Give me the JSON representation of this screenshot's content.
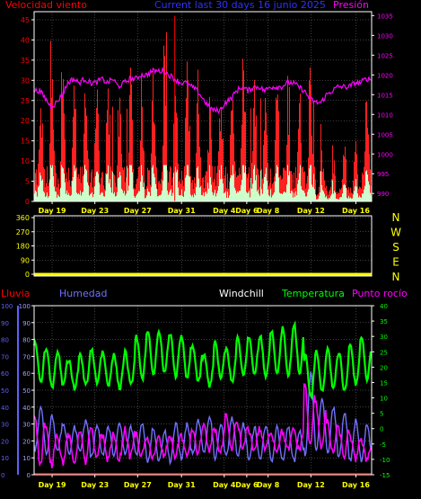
{
  "chart_data": {
    "type": "line",
    "title": "Current last 30 days 16 junio 2025",
    "colors": {
      "background": "#000000",
      "axis": "#ffffff",
      "grid": "#808080",
      "wind": "#ff0000",
      "gust_fill": "#ff2020",
      "avg_fill": "#ccffcc",
      "pressure": "#ff00ff",
      "direction": "#ffff00",
      "rain": "#ff0000",
      "humidity": "#7070ff",
      "windchill": "#ffffff",
      "temperature": "#00ff00",
      "dewpoint": "#ff00ff",
      "day_label": "#ffff00",
      "humidity_axis": "#a0a0ff",
      "pressure_axis": "#ff00ff",
      "rain_axis": "#6060ff",
      "temp_axis": "#00ff00"
    },
    "day_labels": [
      "Day 19",
      "Day 23",
      "Day 27",
      "Day 31",
      "Day 4",
      "Day 6",
      "Day 8",
      "Day 12",
      "Day 16"
    ],
    "day_label_positions": [
      1.6,
      5.4,
      9.2,
      13.1,
      16.9,
      18.9,
      20.8,
      24.6,
      28.6
    ],
    "x_range_days": [
      0,
      30
    ],
    "panels": [
      {
        "id": "wind",
        "left_label": "Velocidad viento",
        "right_label": "Presión",
        "left_axis": {
          "min": 0,
          "max": 47,
          "ticks": [
            0,
            5,
            10,
            15,
            20,
            25,
            30,
            35,
            40,
            45
          ]
        },
        "right_axis": {
          "min": 988,
          "max": 1036,
          "ticks": [
            990,
            995,
            1000,
            1005,
            1010,
            1015,
            1020,
            1025,
            1030,
            1035
          ]
        },
        "pressure_series": [
          [
            0,
            1016
          ],
          [
            0.5,
            1016
          ],
          [
            1,
            1014
          ],
          [
            1.5,
            1012
          ],
          [
            2,
            1013
          ],
          [
            2.5,
            1015
          ],
          [
            3,
            1018
          ],
          [
            3.5,
            1019
          ],
          [
            4,
            1018
          ],
          [
            4.5,
            1019
          ],
          [
            5,
            1018
          ],
          [
            5.5,
            1018
          ],
          [
            6,
            1019
          ],
          [
            6.5,
            1018
          ],
          [
            7,
            1019
          ],
          [
            7.5,
            1017
          ],
          [
            8,
            1018
          ],
          [
            8.5,
            1019
          ],
          [
            9,
            1019
          ],
          [
            9.5,
            1020
          ],
          [
            10,
            1020
          ],
          [
            10.5,
            1021
          ],
          [
            11,
            1021
          ],
          [
            11.5,
            1021
          ],
          [
            12,
            1020
          ],
          [
            12.5,
            1019
          ],
          [
            13,
            1018
          ],
          [
            13.5,
            1018
          ],
          [
            14,
            1017
          ],
          [
            14.5,
            1016
          ],
          [
            15,
            1014
          ],
          [
            15.5,
            1012
          ],
          [
            16,
            1011
          ],
          [
            16.5,
            1011
          ],
          [
            17,
            1013
          ],
          [
            17.5,
            1014
          ],
          [
            18,
            1016
          ],
          [
            18.5,
            1017
          ],
          [
            19,
            1016
          ],
          [
            19.5,
            1017
          ],
          [
            20,
            1017
          ],
          [
            20.5,
            1016
          ],
          [
            21,
            1017
          ],
          [
            21.5,
            1017
          ],
          [
            22,
            1017
          ],
          [
            22.5,
            1018
          ],
          [
            23,
            1018
          ],
          [
            23.5,
            1017
          ],
          [
            24,
            1016
          ],
          [
            24.5,
            1014
          ],
          [
            25,
            1013
          ],
          [
            25.5,
            1013
          ],
          [
            26,
            1015
          ],
          [
            26.5,
            1016
          ],
          [
            27,
            1017
          ],
          [
            27.5,
            1017
          ],
          [
            28,
            1017
          ],
          [
            28.5,
            1018
          ],
          [
            29,
            1018
          ],
          [
            29.5,
            1019
          ],
          [
            30,
            1019
          ]
        ]
      },
      {
        "id": "direction",
        "left_axis": {
          "min": 0,
          "max": 360,
          "ticks": [
            0,
            90,
            180,
            270,
            360
          ]
        },
        "compass_labels": [
          "N",
          "W",
          "S",
          "E",
          "N"
        ],
        "direction_deg": 0
      },
      {
        "id": "climate",
        "labels": {
          "rain": "Lluvia",
          "humidity": "Humedad",
          "windchill": "Windchill",
          "temperature": "Temperatura",
          "dewpoint": "Punto rocío"
        },
        "rain_axis": {
          "min": 0,
          "max": 100,
          "ticks": [
            0,
            10,
            20,
            30,
            40,
            50,
            60,
            70,
            80,
            90,
            100
          ]
        },
        "humidity_axis": {
          "min": 0,
          "max": 100,
          "ticks": [
            0,
            10,
            20,
            30,
            40,
            50,
            60,
            70,
            80,
            90,
            100
          ]
        },
        "temp_axis": {
          "min": -15,
          "max": 40,
          "ticks": [
            -15,
            -10,
            -5,
            0,
            5,
            10,
            15,
            20,
            25,
            30,
            35,
            40
          ]
        },
        "temperature_daily_range": [
          [
            15,
            28
          ],
          [
            13,
            26
          ],
          [
            14,
            25
          ],
          [
            13,
            22
          ],
          [
            14,
            24
          ],
          [
            15,
            26
          ],
          [
            14,
            25
          ],
          [
            13,
            24
          ],
          [
            14,
            25
          ],
          [
            16,
            30
          ],
          [
            17,
            32
          ],
          [
            18,
            32
          ],
          [
            17,
            31
          ],
          [
            16,
            30
          ],
          [
            15,
            27
          ],
          [
            14,
            24
          ],
          [
            16,
            28
          ],
          [
            15,
            26
          ],
          [
            17,
            30
          ],
          [
            18,
            30
          ],
          [
            17,
            30
          ],
          [
            18,
            32
          ],
          [
            17,
            33
          ],
          [
            18,
            34
          ],
          [
            10,
            24
          ],
          [
            12,
            25
          ],
          [
            13,
            26
          ],
          [
            12,
            25
          ],
          [
            14,
            28
          ],
          [
            16,
            30
          ]
        ],
        "humidity_daily_range": [
          [
            15,
            40
          ],
          [
            12,
            35
          ],
          [
            15,
            30
          ],
          [
            12,
            28
          ],
          [
            15,
            32
          ],
          [
            10,
            30
          ],
          [
            12,
            28
          ],
          [
            12,
            30
          ],
          [
            12,
            28
          ],
          [
            12,
            30
          ],
          [
            8,
            28
          ],
          [
            8,
            26
          ],
          [
            8,
            30
          ],
          [
            10,
            30
          ],
          [
            12,
            32
          ],
          [
            12,
            35
          ],
          [
            10,
            30
          ],
          [
            12,
            34
          ],
          [
            10,
            30
          ],
          [
            8,
            28
          ],
          [
            8,
            30
          ],
          [
            8,
            28
          ],
          [
            8,
            28
          ],
          [
            8,
            26
          ],
          [
            12,
            60
          ],
          [
            15,
            45
          ],
          [
            12,
            40
          ],
          [
            10,
            36
          ],
          [
            8,
            32
          ],
          [
            8,
            30
          ]
        ],
        "dewpoint_daily_range": [
          [
            -12,
            5
          ],
          [
            -12,
            0
          ],
          [
            -11,
            -2
          ],
          [
            -11,
            -2
          ],
          [
            -11,
            0
          ],
          [
            -10,
            0
          ],
          [
            -10,
            -2
          ],
          [
            -10,
            -2
          ],
          [
            -9,
            0
          ],
          [
            -9,
            -2
          ],
          [
            -9,
            -4
          ],
          [
            -9,
            -3
          ],
          [
            -9,
            -2
          ],
          [
            -9,
            -2
          ],
          [
            -8,
            0
          ],
          [
            -8,
            2
          ],
          [
            -8,
            0
          ],
          [
            -7,
            4
          ],
          [
            -7,
            2
          ],
          [
            -7,
            0
          ],
          [
            -7,
            0
          ],
          [
            -7,
            -1
          ],
          [
            -7,
            -1
          ],
          [
            -7,
            0
          ],
          [
            -6,
            15
          ],
          [
            -6,
            8
          ],
          [
            -8,
            2
          ],
          [
            -9,
            0
          ],
          [
            -10,
            -2
          ],
          [
            -10,
            -4
          ]
        ],
        "rain_series": [
          [
            0,
            0
          ],
          [
            30,
            0
          ]
        ]
      }
    ]
  }
}
